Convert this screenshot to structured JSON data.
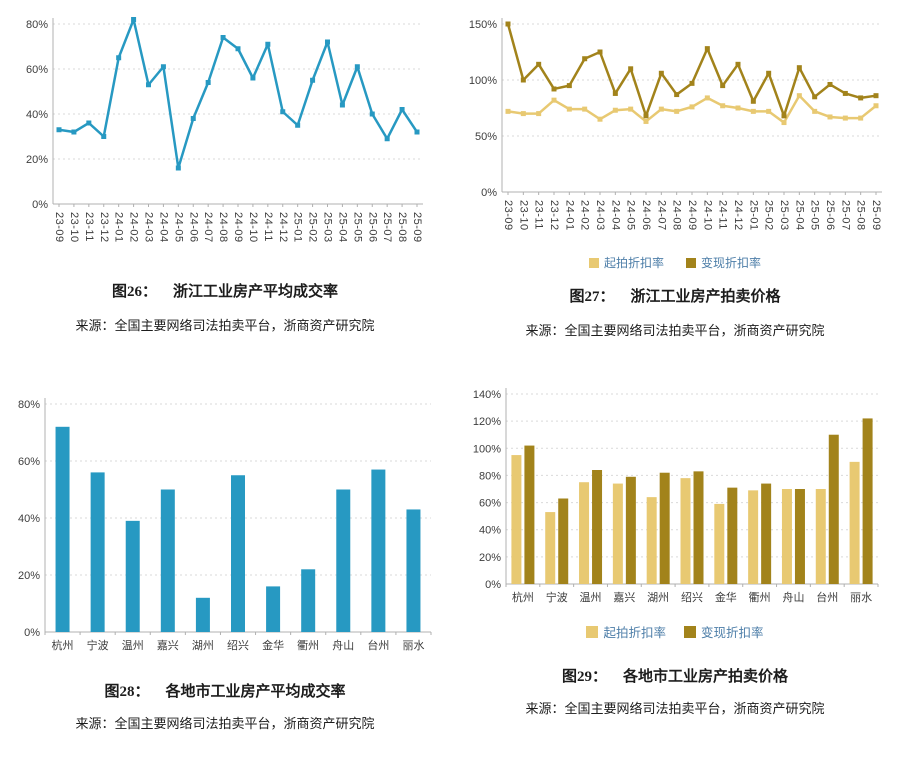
{
  "colors": {
    "teal": "#2799c2",
    "gold_light": "#e8c972",
    "gold_dark": "#a2831b",
    "legend_text": "#4d7ea8",
    "grid": "#d9d9d9",
    "axis": "#b0b0b0",
    "tick_text": "#3d3d3d",
    "caption_text": "#1c1c1c"
  },
  "chart_data": [
    {
      "id": "fig26",
      "type": "line",
      "caption_label": "图26：",
      "title": "浙江工业房产平均成交率",
      "source": "来源：全国主要网络司法拍卖平台，浙商资产研究院",
      "categories": [
        "23-09",
        "23-10",
        "23-11",
        "23-12",
        "24-01",
        "24-02",
        "24-03",
        "24-04",
        "24-05",
        "24-06",
        "24-07",
        "24-08",
        "24-09",
        "24-10",
        "24-11",
        "24-12",
        "25-01",
        "25-02",
        "25-03",
        "25-04",
        "25-05",
        "25-06",
        "25-07",
        "25-08",
        "25-09"
      ],
      "series": [
        {
          "color_key": "teal",
          "values": [
            33,
            32,
            36,
            30,
            65,
            82,
            53,
            61,
            16,
            38,
            54,
            74,
            69,
            56,
            71,
            41,
            35,
            55,
            72,
            44,
            61,
            40,
            29,
            42,
            32
          ]
        }
      ],
      "ylim": [
        0,
        80
      ],
      "yticks": [
        0,
        20,
        40,
        60,
        80
      ],
      "grid": true,
      "legend_position": "none",
      "x_label_rotation": 90
    },
    {
      "id": "fig27",
      "type": "line",
      "caption_label": "图27：",
      "title": "浙江工业房产拍卖价格",
      "source": "来源：全国主要网络司法拍卖平台，浙商资产研究院",
      "categories": [
        "23-09",
        "23-10",
        "23-11",
        "23-12",
        "24-01",
        "24-02",
        "24-03",
        "24-04",
        "24-05",
        "24-06",
        "24-07",
        "24-08",
        "24-09",
        "24-10",
        "24-11",
        "24-12",
        "25-01",
        "25-02",
        "25-03",
        "25-04",
        "25-05",
        "25-06",
        "25-07",
        "25-08",
        "25-09"
      ],
      "series": [
        {
          "name": "起拍折扣率",
          "color_key": "gold_light",
          "values": [
            72,
            70,
            70,
            82,
            74,
            74,
            65,
            73,
            74,
            63,
            74,
            72,
            76,
            84,
            77,
            75,
            72,
            72,
            62,
            86,
            72,
            67,
            66,
            66,
            77
          ]
        },
        {
          "name": "变现折扣率",
          "color_key": "gold_dark",
          "values": [
            150,
            100,
            114,
            92,
            95,
            119,
            125,
            88,
            110,
            68,
            106,
            87,
            97,
            128,
            95,
            114,
            81,
            106,
            68,
            111,
            85,
            96,
            88,
            84,
            86
          ]
        }
      ],
      "ylim": [
        0,
        150
      ],
      "yticks": [
        0,
        50,
        100,
        150
      ],
      "grid": true,
      "legend_position": "bottom",
      "x_label_rotation": 90
    },
    {
      "id": "fig28",
      "type": "bar",
      "caption_label": "图28：",
      "title": "各地市工业房产平均成交率",
      "source": "来源：全国主要网络司法拍卖平台，浙商资产研究院",
      "categories": [
        "杭州",
        "宁波",
        "温州",
        "嘉兴",
        "湖州",
        "绍兴",
        "金华",
        "衢州",
        "舟山",
        "台州",
        "丽水"
      ],
      "series": [
        {
          "color_key": "teal",
          "values": [
            72,
            56,
            39,
            50,
            12,
            55,
            16,
            22,
            50,
            57,
            43
          ]
        }
      ],
      "ylim": [
        0,
        80
      ],
      "yticks": [
        0,
        20,
        40,
        60,
        80
      ],
      "grid": true,
      "legend_position": "none",
      "x_label_rotation": 0
    },
    {
      "id": "fig29",
      "type": "bar",
      "caption_label": "图29：",
      "title": "各地市工业房产拍卖价格",
      "source": "来源：全国主要网络司法拍卖平台，浙商资产研究院",
      "categories": [
        "杭州",
        "宁波",
        "温州",
        "嘉兴",
        "湖州",
        "绍兴",
        "金华",
        "衢州",
        "舟山",
        "台州",
        "丽水"
      ],
      "series": [
        {
          "name": "起拍折扣率",
          "color_key": "gold_light",
          "values": [
            95,
            53,
            75,
            74,
            64,
            78,
            59,
            69,
            70,
            70,
            90
          ]
        },
        {
          "name": "变现折扣率",
          "color_key": "gold_dark",
          "values": [
            102,
            63,
            84,
            79,
            82,
            83,
            71,
            74,
            70,
            110,
            122
          ]
        }
      ],
      "ylim": [
        0,
        140
      ],
      "yticks": [
        0,
        20,
        40,
        60,
        80,
        100,
        120,
        140
      ],
      "grid": true,
      "legend_position": "bottom",
      "x_label_rotation": 0
    }
  ]
}
